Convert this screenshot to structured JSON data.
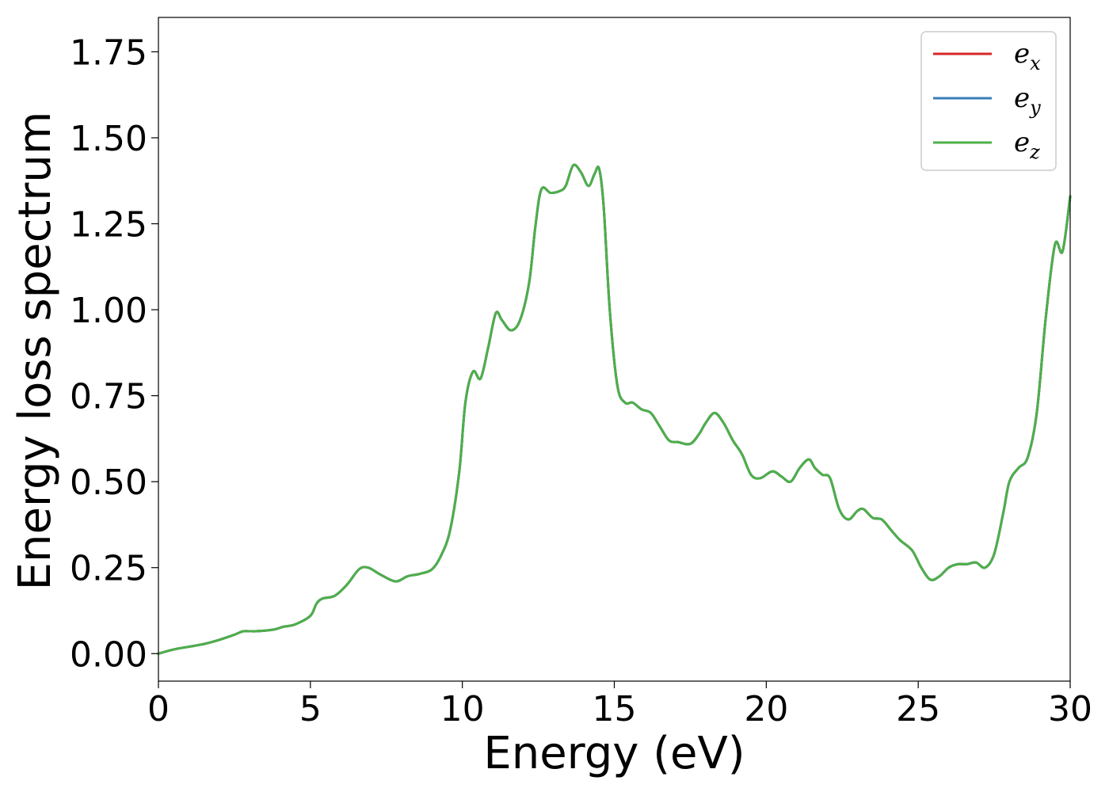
{
  "chart_data": {
    "type": "line",
    "xlabel": "Energy (eV)",
    "ylabel": "Energy loss spectrum",
    "xlim": [
      0,
      30
    ],
    "ylim": [
      -0.08,
      1.85
    ],
    "xticks": [
      0,
      5,
      10,
      15,
      20,
      25,
      30
    ],
    "xtick_labels": [
      "0",
      "5",
      "10",
      "15",
      "20",
      "25",
      "30"
    ],
    "yticks": [
      0.0,
      0.25,
      0.5,
      0.75,
      1.0,
      1.25,
      1.5,
      1.75
    ],
    "ytick_labels": [
      "0.00",
      "0.25",
      "0.50",
      "0.75",
      "1.00",
      "1.25",
      "1.50",
      "1.75"
    ],
    "grid": false,
    "legend_position": "top-right",
    "x": [
      0,
      0.5,
      1,
      1.5,
      2,
      2.5,
      2.8,
      3.2,
      3.8,
      4.1,
      4.5,
      5.0,
      5.2,
      5.4,
      5.8,
      6.2,
      6.6,
      6.9,
      7.3,
      7.8,
      8.2,
      8.6,
      9.0,
      9.3,
      9.6,
      9.9,
      10.1,
      10.35,
      10.6,
      10.85,
      11.1,
      11.3,
      11.6,
      11.9,
      12.2,
      12.4,
      12.6,
      12.9,
      13.2,
      13.4,
      13.65,
      13.9,
      14.15,
      14.35,
      14.5,
      14.65,
      14.85,
      15.1,
      15.35,
      15.6,
      15.9,
      16.2,
      16.5,
      16.8,
      17.1,
      17.5,
      17.8,
      18.0,
      18.3,
      18.6,
      18.9,
      19.2,
      19.5,
      19.8,
      20.2,
      20.5,
      20.8,
      21.1,
      21.4,
      21.6,
      21.85,
      22.1,
      22.4,
      22.7,
      23.0,
      23.2,
      23.5,
      23.8,
      24.1,
      24.4,
      24.8,
      25.1,
      25.4,
      25.7,
      26.0,
      26.3,
      26.6,
      26.9,
      27.2,
      27.5,
      27.8,
      28.0,
      28.3,
      28.6,
      28.9,
      29.2,
      29.5,
      29.75,
      30.0
    ],
    "series": [
      {
        "name": "e_x",
        "legend_base": "e",
        "legend_sub": "x",
        "color": "#d62728",
        "values": [
          0.0,
          0.012,
          0.02,
          0.028,
          0.04,
          0.055,
          0.065,
          0.065,
          0.07,
          0.078,
          0.085,
          0.11,
          0.145,
          0.16,
          0.168,
          0.2,
          0.245,
          0.25,
          0.23,
          0.21,
          0.225,
          0.232,
          0.245,
          0.285,
          0.36,
          0.53,
          0.73,
          0.82,
          0.8,
          0.89,
          0.99,
          0.97,
          0.94,
          0.97,
          1.08,
          1.24,
          1.35,
          1.34,
          1.345,
          1.36,
          1.42,
          1.4,
          1.36,
          1.395,
          1.41,
          1.3,
          1.0,
          0.78,
          0.73,
          0.73,
          0.71,
          0.7,
          0.66,
          0.62,
          0.615,
          0.61,
          0.64,
          0.67,
          0.7,
          0.67,
          0.62,
          0.58,
          0.52,
          0.51,
          0.53,
          0.515,
          0.5,
          0.54,
          0.565,
          0.54,
          0.52,
          0.51,
          0.42,
          0.39,
          0.415,
          0.42,
          0.395,
          0.39,
          0.36,
          0.33,
          0.3,
          0.25,
          0.215,
          0.225,
          0.25,
          0.26,
          0.26,
          0.265,
          0.25,
          0.29,
          0.41,
          0.5,
          0.54,
          0.57,
          0.7,
          0.98,
          1.19,
          1.17,
          1.33
        ]
      },
      {
        "name": "e_y",
        "legend_base": "e",
        "legend_sub": "y",
        "color": "#377eb8",
        "values": [
          0.0,
          0.012,
          0.02,
          0.028,
          0.04,
          0.055,
          0.065,
          0.065,
          0.07,
          0.078,
          0.085,
          0.11,
          0.145,
          0.16,
          0.168,
          0.2,
          0.245,
          0.25,
          0.23,
          0.21,
          0.225,
          0.232,
          0.245,
          0.285,
          0.36,
          0.53,
          0.73,
          0.82,
          0.8,
          0.89,
          0.99,
          0.97,
          0.94,
          0.97,
          1.08,
          1.24,
          1.35,
          1.34,
          1.345,
          1.36,
          1.42,
          1.4,
          1.36,
          1.395,
          1.41,
          1.3,
          1.0,
          0.78,
          0.73,
          0.73,
          0.71,
          0.7,
          0.66,
          0.62,
          0.615,
          0.61,
          0.64,
          0.67,
          0.7,
          0.67,
          0.62,
          0.58,
          0.52,
          0.51,
          0.53,
          0.515,
          0.5,
          0.54,
          0.565,
          0.54,
          0.52,
          0.51,
          0.42,
          0.39,
          0.415,
          0.42,
          0.395,
          0.39,
          0.36,
          0.33,
          0.3,
          0.25,
          0.215,
          0.225,
          0.25,
          0.26,
          0.26,
          0.265,
          0.25,
          0.29,
          0.41,
          0.5,
          0.54,
          0.57,
          0.7,
          0.98,
          1.19,
          1.17,
          1.33
        ]
      },
      {
        "name": "e_z",
        "legend_base": "e",
        "legend_sub": "z",
        "color": "#4daf4a",
        "values": [
          0.0,
          0.012,
          0.02,
          0.028,
          0.04,
          0.055,
          0.065,
          0.065,
          0.07,
          0.078,
          0.085,
          0.11,
          0.145,
          0.16,
          0.168,
          0.2,
          0.245,
          0.25,
          0.23,
          0.21,
          0.225,
          0.232,
          0.245,
          0.285,
          0.36,
          0.53,
          0.73,
          0.82,
          0.8,
          0.89,
          0.99,
          0.97,
          0.94,
          0.97,
          1.08,
          1.24,
          1.35,
          1.34,
          1.345,
          1.36,
          1.42,
          1.4,
          1.36,
          1.395,
          1.41,
          1.3,
          1.0,
          0.78,
          0.73,
          0.73,
          0.71,
          0.7,
          0.66,
          0.62,
          0.615,
          0.61,
          0.64,
          0.67,
          0.7,
          0.67,
          0.62,
          0.58,
          0.52,
          0.51,
          0.53,
          0.515,
          0.5,
          0.54,
          0.565,
          0.54,
          0.52,
          0.51,
          0.42,
          0.39,
          0.415,
          0.42,
          0.395,
          0.39,
          0.36,
          0.33,
          0.3,
          0.25,
          0.215,
          0.225,
          0.25,
          0.26,
          0.26,
          0.265,
          0.25,
          0.29,
          0.41,
          0.5,
          0.54,
          0.57,
          0.7,
          0.98,
          1.19,
          1.17,
          1.33
        ]
      }
    ]
  }
}
